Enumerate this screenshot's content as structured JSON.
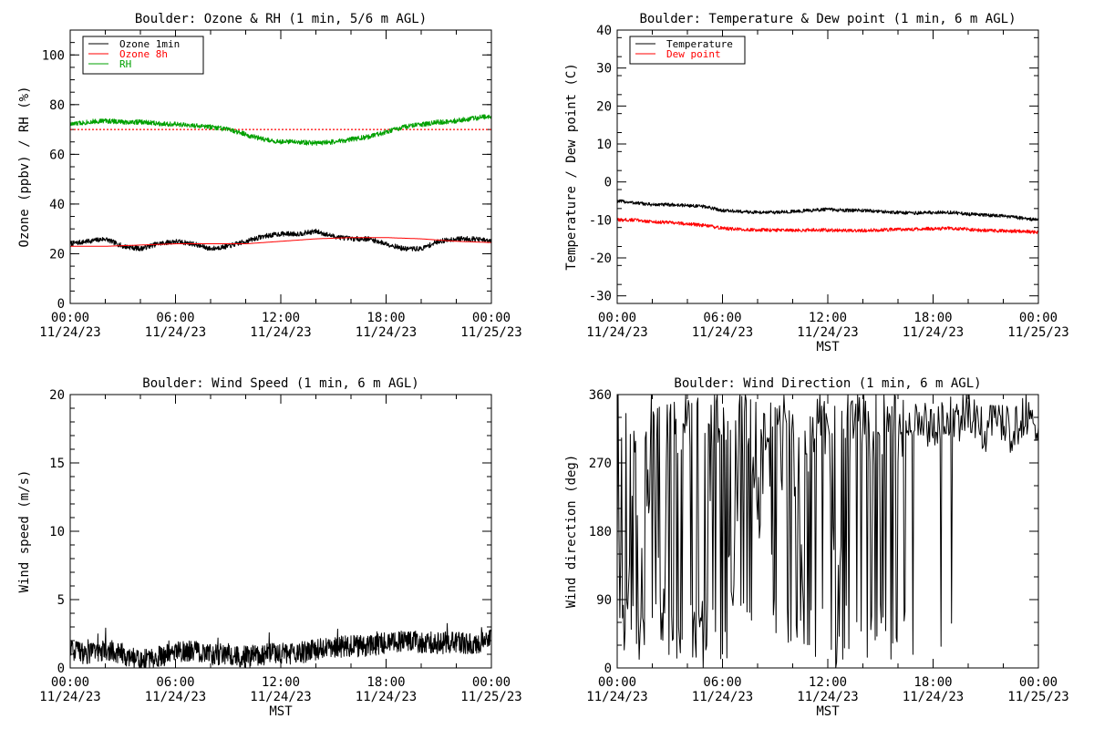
{
  "chart_data": [
    {
      "type": "line",
      "title": "Boulder: Ozone & RH (1 min, 5/6 m AGL)",
      "ylabel": "Ozone (ppbv) / RH (%)",
      "xlabel": "",
      "ylim": [
        0,
        110
      ],
      "yticks": [
        0,
        20,
        40,
        60,
        80,
        100
      ],
      "xlim": [
        0,
        24
      ],
      "xticks": [
        0,
        6,
        12,
        18,
        24
      ],
      "xticklabels": [
        [
          "00:00",
          "11/24/23"
        ],
        [
          "06:00",
          "11/24/23"
        ],
        [
          "12:00",
          "11/24/23"
        ],
        [
          "18:00",
          "11/24/23"
        ],
        [
          "00:00",
          "11/25/23"
        ]
      ],
      "x_units": "hours since 00:00 11/24/23 MST",
      "legend": "top-left",
      "series": [
        {
          "name": "Ozone 1min",
          "color": "#000000",
          "x": [
            0,
            1,
            2,
            3,
            4,
            5,
            6,
            7,
            8,
            9,
            10,
            11,
            12,
            13,
            14,
            15,
            16,
            17,
            18,
            19,
            20,
            21,
            22,
            23,
            24
          ],
          "values": [
            24,
            25,
            26,
            23,
            22,
            24,
            25,
            24,
            22,
            23,
            25,
            27,
            28,
            28,
            29,
            27,
            26,
            26,
            24,
            22,
            22,
            25,
            26,
            26,
            25
          ]
        },
        {
          "name": "Ozone 8h",
          "color": "#ff0000",
          "x": [
            0,
            2,
            4,
            6,
            8,
            10,
            12,
            14,
            16,
            18,
            20,
            22,
            24
          ],
          "values": [
            23,
            23,
            23.5,
            24,
            24,
            24,
            25,
            26,
            26.5,
            26.5,
            26,
            25,
            24.5
          ]
        },
        {
          "name": "RH",
          "color": "#00a000",
          "x": [
            0,
            1,
            2,
            3,
            4,
            5,
            6,
            7,
            8,
            9,
            10,
            11,
            12,
            13,
            14,
            15,
            16,
            17,
            18,
            19,
            20,
            21,
            22,
            23,
            24
          ],
          "values": [
            72,
            73,
            73.5,
            73,
            73,
            72.5,
            72,
            71.5,
            71,
            70,
            68,
            66,
            65,
            65,
            64.5,
            65,
            66,
            67,
            69,
            71,
            72,
            73,
            73.5,
            74.5,
            75.5
          ]
        }
      ],
      "reference_lines": [
        {
          "y": 70,
          "color": "#ff0000",
          "style": "dotted"
        }
      ]
    },
    {
      "type": "line",
      "title": "Boulder: Temperature & Dew point (1 min, 6 m AGL)",
      "ylabel": "Temperature / Dew point (C)",
      "xlabel": "MST",
      "ylim": [
        -32,
        40
      ],
      "yticks": [
        -30,
        -20,
        -10,
        0,
        10,
        20,
        30,
        40
      ],
      "xlim": [
        0,
        24
      ],
      "xticks": [
        0,
        6,
        12,
        18,
        24
      ],
      "xticklabels": [
        [
          "00:00",
          "11/24/23"
        ],
        [
          "06:00",
          "11/24/23"
        ],
        [
          "12:00",
          "11/24/23"
        ],
        [
          "18:00",
          "11/24/23"
        ],
        [
          "00:00",
          "11/25/23"
        ]
      ],
      "x_units": "hours since 00:00 11/24/23 MST",
      "legend": "top-left",
      "series": [
        {
          "name": "Temperature",
          "color": "#000000",
          "x": [
            0,
            1,
            2,
            3,
            4,
            5,
            6,
            7,
            8,
            9,
            10,
            11,
            12,
            13,
            14,
            15,
            16,
            17,
            18,
            19,
            20,
            21,
            22,
            23,
            24
          ],
          "values": [
            -5,
            -5.5,
            -6,
            -6,
            -6.2,
            -6.5,
            -7.5,
            -7.8,
            -8,
            -8,
            -7.8,
            -7.5,
            -7.2,
            -7.5,
            -7.5,
            -7.8,
            -8,
            -8.2,
            -8,
            -8,
            -8.5,
            -8.7,
            -9,
            -9.5,
            -10
          ]
        },
        {
          "name": "Dew point",
          "color": "#ff0000",
          "x": [
            0,
            1,
            2,
            3,
            4,
            5,
            6,
            7,
            8,
            9,
            10,
            11,
            12,
            13,
            14,
            15,
            16,
            17,
            18,
            19,
            20,
            21,
            22,
            23,
            24
          ],
          "values": [
            -10,
            -10,
            -10.5,
            -10.7,
            -11,
            -11.5,
            -12.2,
            -12.5,
            -12.6,
            -12.7,
            -12.8,
            -12.6,
            -12.7,
            -12.8,
            -12.8,
            -12.6,
            -12.5,
            -12.4,
            -12.3,
            -12.2,
            -12.5,
            -12.8,
            -12.9,
            -13,
            -13.2
          ]
        }
      ]
    },
    {
      "type": "line",
      "title": "Boulder: Wind Speed (1 min, 6 m AGL)",
      "ylabel": "Wind speed (m/s)",
      "xlabel": "MST",
      "ylim": [
        0,
        20
      ],
      "yticks": [
        0,
        5,
        10,
        15,
        20
      ],
      "xlim": [
        0,
        24
      ],
      "xticks": [
        0,
        6,
        12,
        18,
        24
      ],
      "xticklabels": [
        [
          "00:00",
          "11/24/23"
        ],
        [
          "06:00",
          "11/24/23"
        ],
        [
          "12:00",
          "11/24/23"
        ],
        [
          "18:00",
          "11/24/23"
        ],
        [
          "00:00",
          "11/25/23"
        ]
      ],
      "x_units": "hours since 00:00 11/24/23 MST",
      "series": [
        {
          "name": "",
          "color": "#000000",
          "x": [
            0,
            1,
            2,
            3,
            4,
            5,
            6,
            7,
            8,
            9,
            10,
            11,
            12,
            13,
            14,
            15,
            16,
            17,
            18,
            19,
            20,
            21,
            22,
            23,
            24
          ],
          "values": [
            1.2,
            1.0,
            1.4,
            1.0,
            0.5,
            0.8,
            1.1,
            1.3,
            1.0,
            1.0,
            0.8,
            1.0,
            1.0,
            1.1,
            1.3,
            1.5,
            1.6,
            1.6,
            1.8,
            2.0,
            1.9,
            1.8,
            1.9,
            1.8,
            2.0
          ]
        }
      ]
    },
    {
      "type": "line",
      "title": "Boulder: Wind Direction (1 min, 6 m AGL)",
      "ylabel": "Wind direction (deg)",
      "xlabel": "MST",
      "ylim": [
        0,
        360
      ],
      "yticks": [
        0,
        90,
        180,
        270,
        360
      ],
      "xlim": [
        0,
        24
      ],
      "xticks": [
        0,
        6,
        12,
        18,
        24
      ],
      "xticklabels": [
        [
          "00:00",
          "11/24/23"
        ],
        [
          "06:00",
          "11/24/23"
        ],
        [
          "12:00",
          "11/24/23"
        ],
        [
          "18:00",
          "11/24/23"
        ],
        [
          "00:00",
          "11/25/23"
        ]
      ],
      "x_units": "hours since 00:00 11/24/23 MST",
      "series": [
        {
          "name": "",
          "color": "#000000",
          "x": [
            0,
            0.5,
            1,
            1.5,
            2,
            2.5,
            3,
            3.5,
            4,
            4.5,
            5,
            5.5,
            6,
            6.5,
            7,
            7.5,
            8,
            8.5,
            9,
            9.5,
            10,
            10.5,
            11,
            11.5,
            12,
            12.5,
            13,
            13.5,
            14,
            14.5,
            15,
            15.5,
            16,
            16.5,
            17,
            17.5,
            18,
            18.5,
            19,
            19.5,
            20,
            20.5,
            21,
            21.5,
            22,
            22.5,
            23,
            23.5,
            24
          ],
          "values": [
            180,
            20,
            340,
            60,
            350,
            30,
            340,
            300,
            345,
            60,
            20,
            340,
            320,
            50,
            340,
            330,
            200,
            340,
            20,
            350,
            310,
            150,
            345,
            330,
            300,
            30,
            340,
            320,
            345,
            290,
            340,
            320,
            330,
            310,
            320,
            330,
            310,
            335,
            330,
            325,
            340,
            330,
            310,
            335,
            320,
            310,
            330,
            340,
            320
          ]
        }
      ]
    }
  ]
}
